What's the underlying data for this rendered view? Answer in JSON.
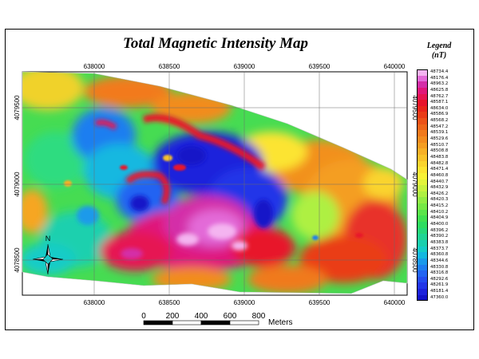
{
  "title": "Total Magnetic Intensity Map",
  "legend": {
    "title": "Legend",
    "units": "(nT)",
    "entries": [
      {
        "value": "48734.4",
        "color": "#f4b4f0"
      },
      {
        "value": "48176.4",
        "color": "#e36ad8"
      },
      {
        "value": "48963.2",
        "color": "#d42ea8"
      },
      {
        "value": "48625.8",
        "color": "#e0177a"
      },
      {
        "value": "48762.7",
        "color": "#e61453"
      },
      {
        "value": "48587.1",
        "color": "#e8142b"
      },
      {
        "value": "48634.0",
        "color": "#e9261a"
      },
      {
        "value": "48586.9",
        "color": "#ea3c17"
      },
      {
        "value": "48568.2",
        "color": "#ec5218"
      },
      {
        "value": "48547.2",
        "color": "#ee661a"
      },
      {
        "value": "48539.1",
        "color": "#f07a1c"
      },
      {
        "value": "48529.6",
        "color": "#f28c1f"
      },
      {
        "value": "48510.7",
        "color": "#f49e22"
      },
      {
        "value": "48508.8",
        "color": "#f6b026"
      },
      {
        "value": "48483.8",
        "color": "#f8c22a"
      },
      {
        "value": "48482.8",
        "color": "#fad42e"
      },
      {
        "value": "48471.4",
        "color": "#fce432"
      },
      {
        "value": "48460.8",
        "color": "#f8f236"
      },
      {
        "value": "48440.7",
        "color": "#e2f43a"
      },
      {
        "value": "48432.9",
        "color": "#c8f23e"
      },
      {
        "value": "48426.2",
        "color": "#aef042"
      },
      {
        "value": "48420.3",
        "color": "#92ec44"
      },
      {
        "value": "48415.2",
        "color": "#76e846"
      },
      {
        "value": "48410.2",
        "color": "#5ae44a"
      },
      {
        "value": "48404.9",
        "color": "#40e050"
      },
      {
        "value": "48400.0",
        "color": "#2edc60"
      },
      {
        "value": "48396.2",
        "color": "#26d878"
      },
      {
        "value": "48390.2",
        "color": "#20d494"
      },
      {
        "value": "48383.8",
        "color": "#1ad0ae"
      },
      {
        "value": "48373.7",
        "color": "#16ccc8"
      },
      {
        "value": "48360.8",
        "color": "#14b8e0"
      },
      {
        "value": "48344.6",
        "color": "#1a9aea"
      },
      {
        "value": "48330.8",
        "color": "#1e7ef0"
      },
      {
        "value": "48316.8",
        "color": "#2264f2"
      },
      {
        "value": "48292.6",
        "color": "#244cf0"
      },
      {
        "value": "48261.9",
        "color": "#2236e8"
      },
      {
        "value": "48181.4",
        "color": "#1c22dc"
      },
      {
        "value": "47360.0",
        "color": "#1212c8"
      }
    ]
  },
  "axes": {
    "x_ticks": [
      "638000",
      "638500",
      "639000",
      "639500",
      "640000"
    ],
    "y_ticks": [
      "4079500",
      "4079000",
      "4078500"
    ]
  },
  "north_arrow": {
    "label": "N"
  },
  "scale_bar": {
    "labels": [
      "0",
      "200",
      "400",
      "600",
      "800"
    ],
    "units": "Meters"
  }
}
